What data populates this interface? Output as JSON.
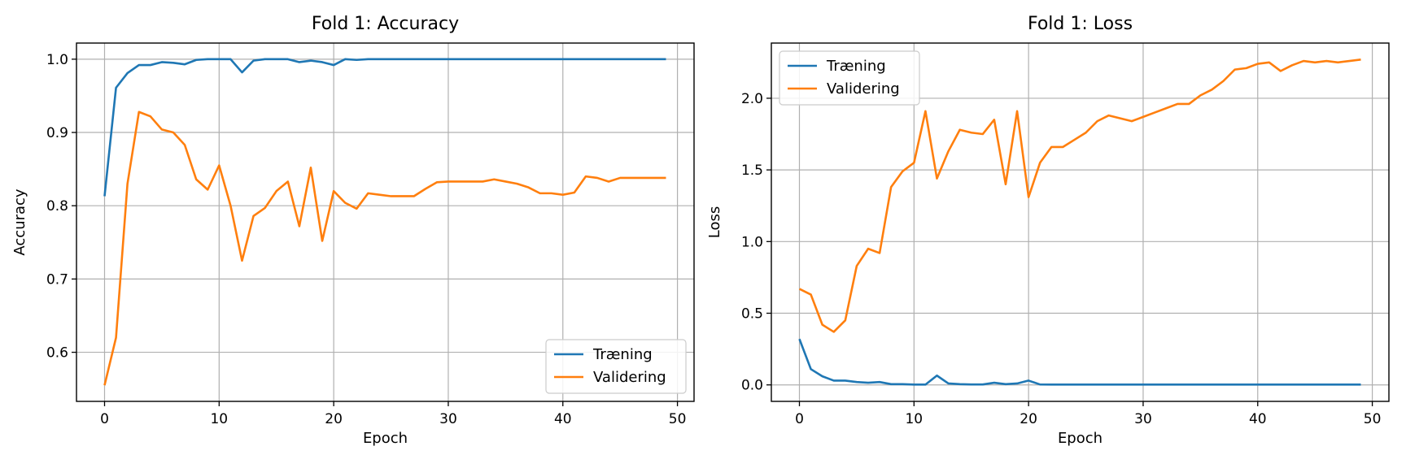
{
  "chart_data": [
    {
      "type": "line",
      "title": "Fold 1: Accuracy",
      "xlabel": "Epoch",
      "ylabel": "Accuracy",
      "xlim": [
        -2.45,
        51.45
      ],
      "ylim": [
        0.533,
        1.022
      ],
      "xticks": [
        0,
        10,
        20,
        30,
        40,
        50
      ],
      "yticks": [
        0.6,
        0.7,
        0.8,
        0.9,
        1.0
      ],
      "xtick_labels": [
        "0",
        "10",
        "20",
        "30",
        "40",
        "50"
      ],
      "ytick_labels": [
        "0.6",
        "0.7",
        "0.8",
        "0.9",
        "1.0"
      ],
      "grid": true,
      "legend_position": "lower-right",
      "x": [
        0,
        1,
        2,
        3,
        4,
        5,
        6,
        7,
        8,
        9,
        10,
        11,
        12,
        13,
        14,
        15,
        16,
        17,
        18,
        19,
        20,
        21,
        22,
        23,
        24,
        25,
        26,
        27,
        28,
        29,
        30,
        31,
        32,
        33,
        34,
        35,
        36,
        37,
        38,
        39,
        40,
        41,
        42,
        43,
        44,
        45,
        46,
        47,
        48,
        49
      ],
      "series": [
        {
          "name": "Træning",
          "color": "#1f77b4",
          "values": [
            0.813,
            0.961,
            0.981,
            0.992,
            0.992,
            0.996,
            0.995,
            0.993,
            0.999,
            1.0,
            1.0,
            1.0,
            0.982,
            0.998,
            1.0,
            1.0,
            1.0,
            0.996,
            0.998,
            0.996,
            0.992,
            1.0,
            0.999,
            1.0,
            1.0,
            1.0,
            1.0,
            1.0,
            1.0,
            1.0,
            1.0,
            1.0,
            1.0,
            1.0,
            1.0,
            1.0,
            1.0,
            1.0,
            1.0,
            1.0,
            1.0,
            1.0,
            1.0,
            1.0,
            1.0,
            1.0,
            1.0,
            1.0,
            1.0,
            1.0
          ]
        },
        {
          "name": "Validering",
          "color": "#ff7f0e",
          "values": [
            0.555,
            0.62,
            0.83,
            0.928,
            0.922,
            0.904,
            0.9,
            0.883,
            0.836,
            0.822,
            0.855,
            0.8,
            0.725,
            0.786,
            0.797,
            0.82,
            0.833,
            0.772,
            0.852,
            0.752,
            0.82,
            0.804,
            0.796,
            0.817,
            0.815,
            0.813,
            0.813,
            0.813,
            0.823,
            0.832,
            0.833,
            0.833,
            0.833,
            0.833,
            0.836,
            0.833,
            0.83,
            0.825,
            0.817,
            0.817,
            0.815,
            0.818,
            0.84,
            0.838,
            0.833,
            0.838,
            0.838,
            0.838,
            0.838,
            0.838
          ]
        }
      ]
    },
    {
      "type": "line",
      "title": "Fold 1: Loss",
      "xlabel": "Epoch",
      "ylabel": "Loss",
      "xlim": [
        -2.45,
        51.45
      ],
      "ylim": [
        -0.115,
        2.385
      ],
      "xticks": [
        0,
        10,
        20,
        30,
        40,
        50
      ],
      "yticks": [
        0.0,
        0.5,
        1.0,
        1.5,
        2.0
      ],
      "xtick_labels": [
        "0",
        "10",
        "20",
        "30",
        "40",
        "50"
      ],
      "ytick_labels": [
        "0.0",
        "0.5",
        "1.0",
        "1.5",
        "2.0"
      ],
      "grid": true,
      "legend_position": "upper-left",
      "x": [
        0,
        1,
        2,
        3,
        4,
        5,
        6,
        7,
        8,
        9,
        10,
        11,
        12,
        13,
        14,
        15,
        16,
        17,
        18,
        19,
        20,
        21,
        22,
        23,
        24,
        25,
        26,
        27,
        28,
        29,
        30,
        31,
        32,
        33,
        34,
        35,
        36,
        37,
        38,
        39,
        40,
        41,
        42,
        43,
        44,
        45,
        46,
        47,
        48,
        49
      ],
      "series": [
        {
          "name": "Træning",
          "color": "#1f77b4",
          "values": [
            0.32,
            0.11,
            0.06,
            0.03,
            0.03,
            0.02,
            0.015,
            0.02,
            0.005,
            0.005,
            0.002,
            0.002,
            0.065,
            0.01,
            0.005,
            0.003,
            0.003,
            0.015,
            0.005,
            0.01,
            0.03,
            0.003,
            0.002,
            0.002,
            0.002,
            0.002,
            0.002,
            0.002,
            0.002,
            0.002,
            0.002,
            0.002,
            0.002,
            0.002,
            0.002,
            0.002,
            0.002,
            0.002,
            0.002,
            0.002,
            0.002,
            0.002,
            0.002,
            0.002,
            0.002,
            0.002,
            0.002,
            0.002,
            0.002,
            0.002
          ]
        },
        {
          "name": "Validering",
          "color": "#ff7f0e",
          "values": [
            0.67,
            0.63,
            0.42,
            0.37,
            0.45,
            0.83,
            0.95,
            0.92,
            1.38,
            1.49,
            1.55,
            1.91,
            1.44,
            1.63,
            1.78,
            1.76,
            1.75,
            1.85,
            1.4,
            1.91,
            1.31,
            1.55,
            1.66,
            1.66,
            1.71,
            1.76,
            1.84,
            1.88,
            1.86,
            1.84,
            1.87,
            1.9,
            1.93,
            1.96,
            1.96,
            2.02,
            2.06,
            2.12,
            2.2,
            2.21,
            2.24,
            2.25,
            2.19,
            2.23,
            2.26,
            2.25,
            2.26,
            2.25,
            2.26,
            2.27
          ]
        }
      ]
    }
  ]
}
